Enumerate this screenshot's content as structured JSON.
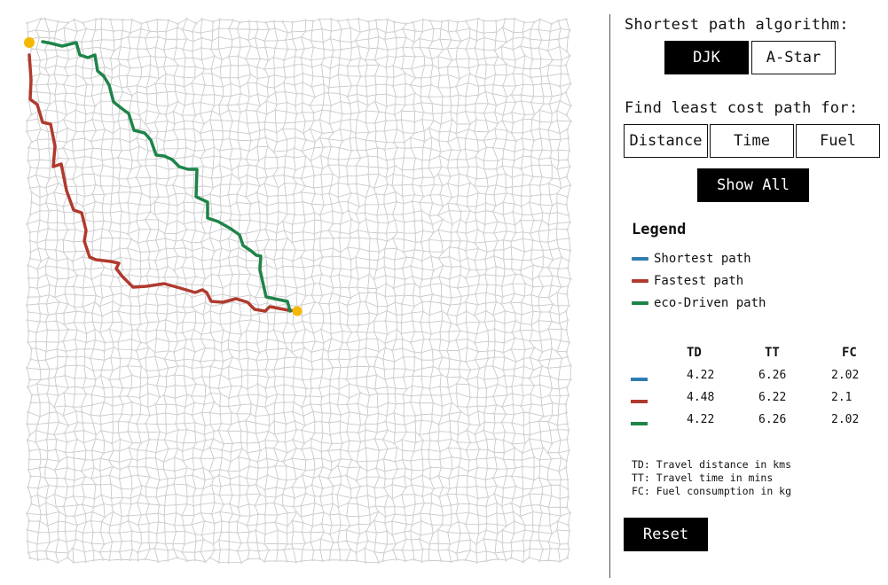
{
  "colors": {
    "shortest": "#2f7db0",
    "fastest": "#b03a2e",
    "eco": "#1e8449",
    "endpoint": "#f5b800",
    "grid_line": "#c4c4c4",
    "grid_node": "#dadada"
  },
  "map": {
    "path_colors": [
      "#2f7db0",
      "#b03a2e",
      "#1e8449"
    ]
  },
  "controls": {
    "algorithm_heading": "Shortest path algorithm:",
    "algorithms": [
      {
        "label": "DJK",
        "active": true
      },
      {
        "label": "A-Star",
        "active": false
      }
    ],
    "cost_heading": "Find least cost path for:",
    "costs": [
      "Distance",
      "Time",
      "Fuel"
    ],
    "show_all_label": "Show All",
    "reset_label": "Reset"
  },
  "legend": {
    "title": "Legend",
    "items": [
      {
        "label": "Shortest path",
        "color": "#2f7db0"
      },
      {
        "label": "Fastest path",
        "color": "#b03a2e"
      },
      {
        "label": "eco-Driven path",
        "color": "#1e8449"
      }
    ]
  },
  "stats": {
    "headers": [
      "TD",
      "TT",
      "FC"
    ],
    "rows": [
      {
        "color": "#2f7db0",
        "td": "4.22",
        "tt": "6.26",
        "fc": "2.02"
      },
      {
        "color": "#b03a2e",
        "td": "4.48",
        "tt": "6.22",
        "fc": "2.1"
      },
      {
        "color": "#1e8449",
        "td": "4.22",
        "tt": "6.26",
        "fc": "2.02"
      }
    ]
  },
  "notes": [
    "TD: Travel distance in kms",
    "TT: Travel time in mins",
    "FC: Fuel consumption in kg"
  ]
}
